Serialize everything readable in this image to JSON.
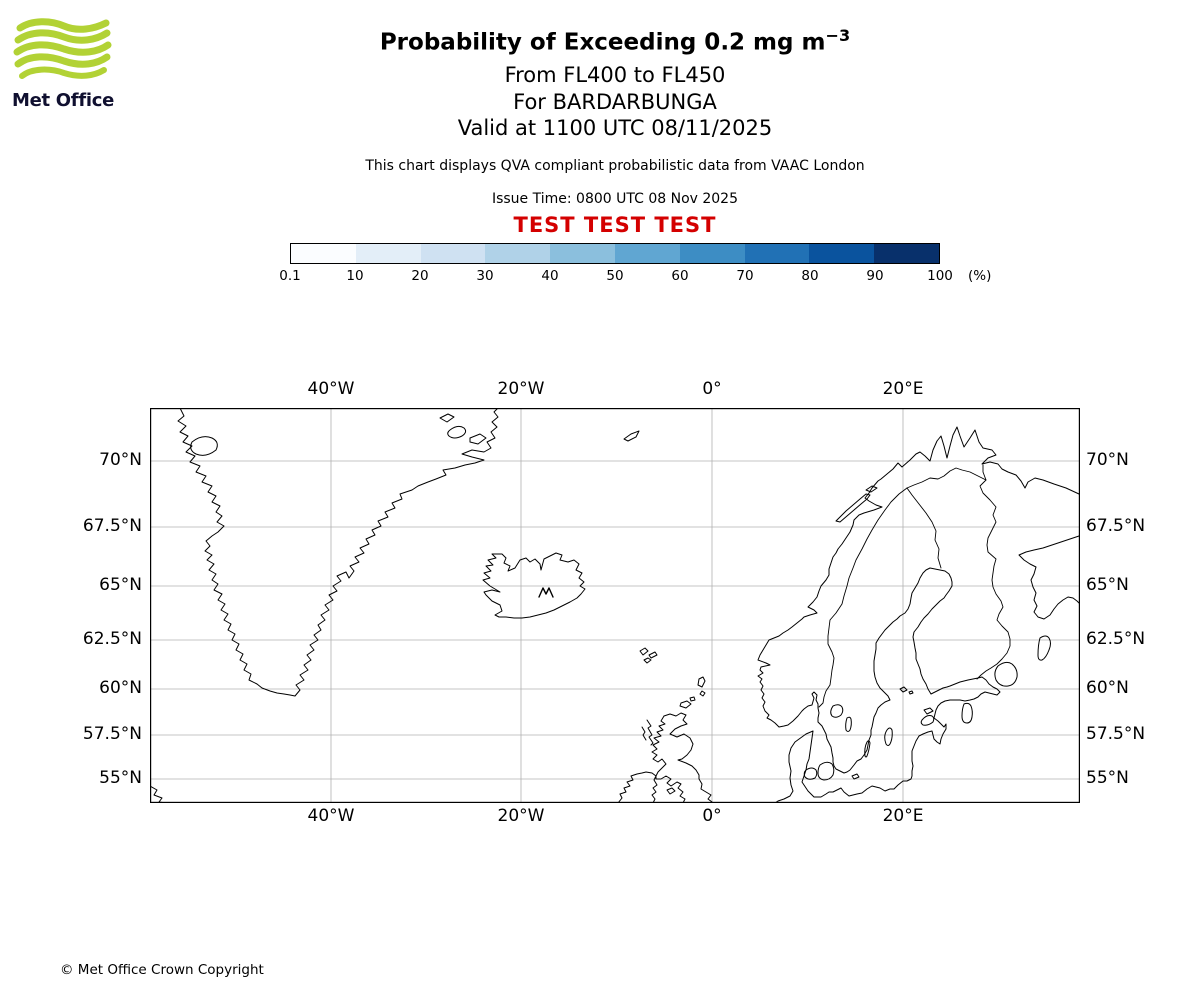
{
  "header": {
    "logo_text": "Met Office",
    "logo_green": "#b2d235",
    "logo_text_color": "#101030",
    "title": "Probability of Exceeding 0.2 mg m",
    "title_superscript": "−3",
    "subtitle_flight_levels": "From FL400 to FL450",
    "subtitle_volcano": "For BARDARBUNGA",
    "subtitle_valid": "Valid at 1100 UTC 08/11/2025",
    "description": "This chart displays QVA compliant probabilistic data from VAAC London",
    "issue_time": "Issue Time: 0800 UTC 08 Nov 2025",
    "test_banner": "TEST TEST TEST",
    "test_banner_color": "#d40000"
  },
  "colorbar": {
    "tick_labels": [
      "0.1",
      "10",
      "20",
      "30",
      "40",
      "50",
      "60",
      "70",
      "80",
      "90",
      "100"
    ],
    "unit_label": "(%)",
    "colors": [
      "#fbfdff",
      "#e3eef8",
      "#cfe1f2",
      "#b0d2e8",
      "#8bbfdd",
      "#60a6d2",
      "#3d8dc4",
      "#2171b5",
      "#0a539e",
      "#08306b"
    ]
  },
  "map": {
    "x_tick_labels": [
      "40°W",
      "20°W",
      "0°",
      "20°E"
    ],
    "y_tick_labels": [
      "70°N",
      "67.5°N",
      "65°N",
      "62.5°N",
      "60°N",
      "57.5°N",
      "55°N"
    ],
    "grid_color": "#b0b0b0",
    "coast_color": "#000000"
  },
  "footer": {
    "copyright": "© Met Office Crown Copyright"
  }
}
